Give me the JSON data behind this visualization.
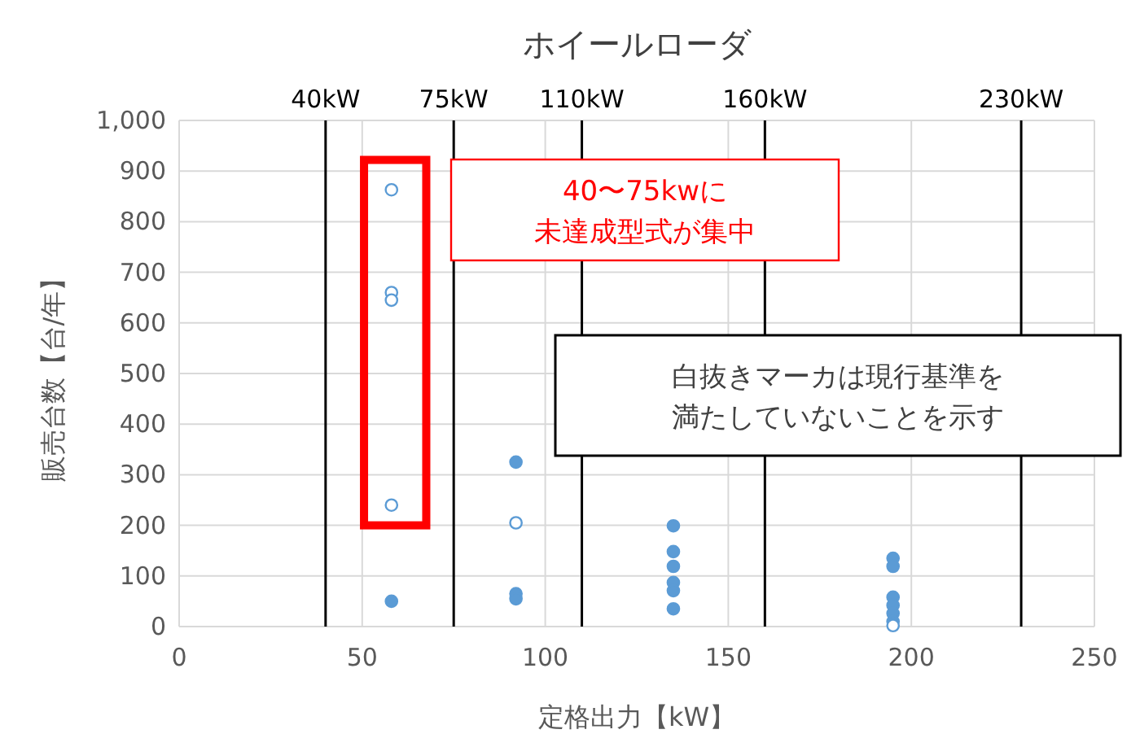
{
  "chart_data": {
    "type": "scatter",
    "title": "ホイールローダ",
    "xlabel": "定格出力【kW】",
    "ylabel": "販売台数【台/年】",
    "xlim": [
      0,
      250
    ],
    "xticks": [
      0,
      50,
      100,
      150,
      200,
      250
    ],
    "ylim": [
      0,
      1000
    ],
    "yticks": [
      0,
      100,
      200,
      300,
      400,
      500,
      600,
      700,
      800,
      900,
      {
        "value": 1000,
        "label": "1,000"
      }
    ],
    "grid": true,
    "marker": "circle",
    "series": [
      {
        "color": "#5b9bd5",
        "x": [
          58,
          92,
          92,
          92,
          135,
          135,
          135,
          135,
          135,
          135,
          195,
          195,
          195,
          195,
          195,
          195
        ],
        "values": [
          50,
          325,
          65,
          55,
          199,
          148,
          119,
          87,
          71,
          35,
          135,
          119,
          58,
          42,
          26,
          10
        ]
      },
      {
        "color": "#5b9bd5",
        "x": [
          58,
          58,
          58,
          58,
          92,
          195
        ],
        "values": [
          863,
          660,
          645,
          240,
          205,
          2
        ]
      }
    ],
    "ref_lines": [
      {
        "axis": "x",
        "value": 40,
        "label": "40kW"
      },
      {
        "axis": "x",
        "value": 75,
        "label": "75kW"
      },
      {
        "axis": "x",
        "value": 110,
        "label": "110kW"
      },
      {
        "axis": "x",
        "value": 160,
        "label": "160kW"
      },
      {
        "axis": "x",
        "value": 230,
        "label": "230kW"
      }
    ],
    "annotations": [
      "40〜75kwに未達成型式が集中",
      "白抜きマーカは現行基準を満たしていないことを示す"
    ]
  }
}
